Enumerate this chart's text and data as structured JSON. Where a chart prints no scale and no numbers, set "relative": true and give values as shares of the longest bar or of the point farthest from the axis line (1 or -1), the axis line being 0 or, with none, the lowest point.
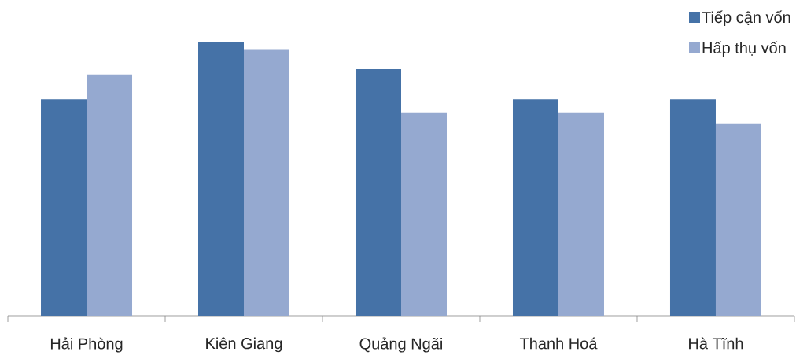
{
  "chart_data": {
    "type": "bar",
    "categories": [
      "Hải Phòng",
      "Kiên Giang",
      "Quảng Ngãi",
      "Thanh Hoá",
      "Hà Tĩnh"
    ],
    "series": [
      {
        "name": "Tiếp cận vốn",
        "color": "#4572a7",
        "values": [
          0.79,
          1,
          0.9,
          0.79,
          0.79
        ]
      },
      {
        "name": "Hấp thụ vốn",
        "color": "#95a9d0",
        "values": [
          0.88,
          0.97,
          0.74,
          0.74,
          0.7
        ]
      }
    ],
    "relative": true,
    "legend": "top right"
  }
}
